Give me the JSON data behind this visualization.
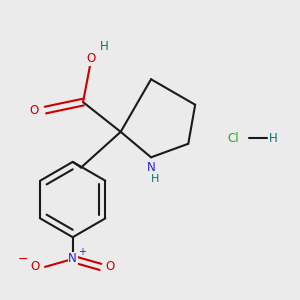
{
  "bg_color": "#ebebeb",
  "bond_color": "#1a1a1a",
  "N_color": "#2222dd",
  "O_color": "#cc0000",
  "H_color": "#007777",
  "Cl_color": "#22aa22",
  "lw": 1.5,
  "dbo": 0.032,
  "xlim": [
    0,
    3.0
  ],
  "ylim": [
    0,
    3.0
  ]
}
